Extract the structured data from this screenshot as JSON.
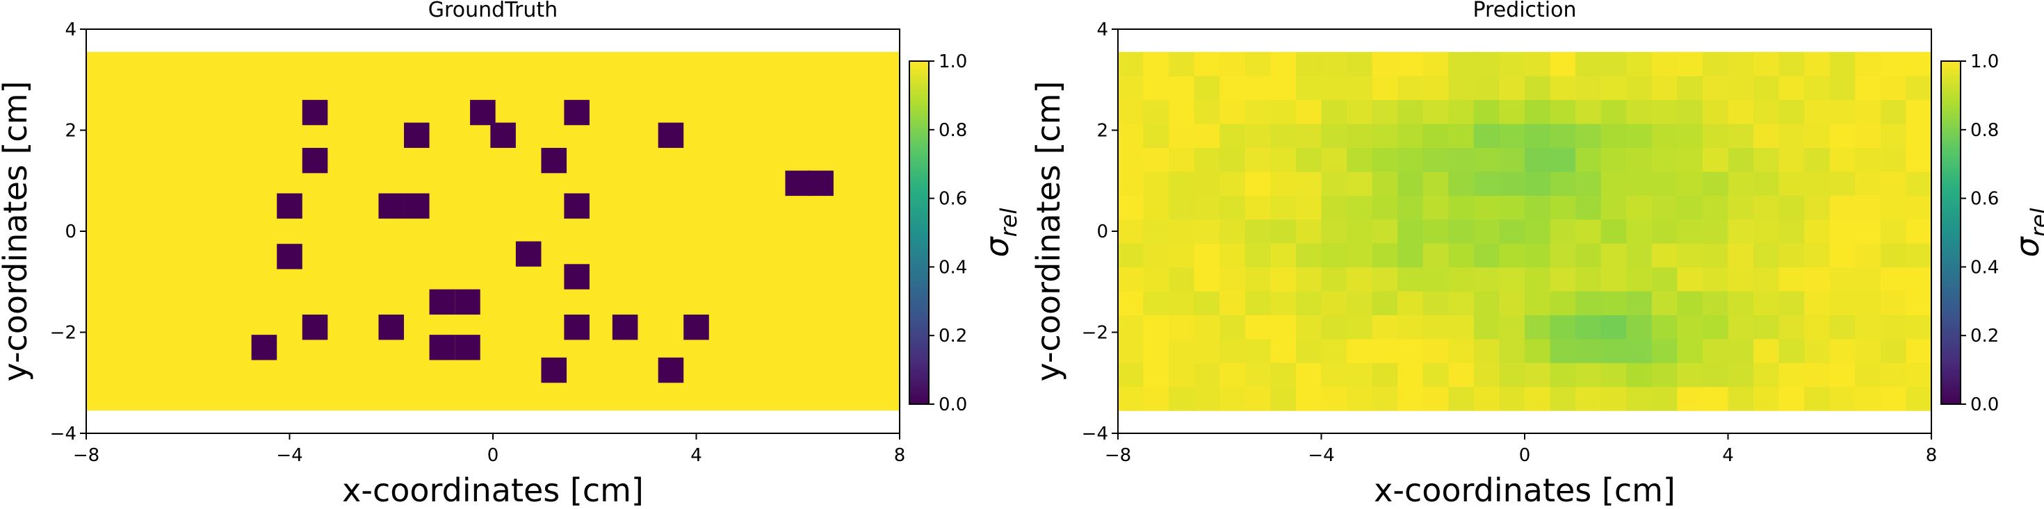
{
  "chart_data": [
    {
      "type": "heatmap",
      "title": "GroundTruth",
      "xlabel": "x-coordinates [cm]",
      "ylabel": "y-coordinates [cm]",
      "xlim": [
        -8,
        8
      ],
      "ylim": [
        -4,
        4
      ],
      "xticks": [
        -8,
        -4,
        0,
        4,
        8
      ],
      "yticks": [
        -4,
        -2,
        0,
        2,
        4
      ],
      "data_extent": {
        "x": [
          -8,
          8
        ],
        "y": [
          -3.55,
          3.55
        ]
      },
      "background_value": 1.0,
      "cell_size": [
        0.5,
        0.5
      ],
      "cells_value_0": [
        [
          -4.5,
          -2.3
        ],
        [
          -4.0,
          -0.5
        ],
        [
          -4.0,
          0.5
        ],
        [
          -3.5,
          2.35
        ],
        [
          -3.5,
          1.4
        ],
        [
          -3.5,
          -1.9
        ],
        [
          -2.0,
          0.5
        ],
        [
          -1.5,
          0.5
        ],
        [
          -1.5,
          1.9
        ],
        [
          -2.0,
          -1.9
        ],
        [
          -1.0,
          -1.4
        ],
        [
          -0.5,
          -1.4
        ],
        [
          -1.0,
          -2.3
        ],
        [
          -0.5,
          -2.3
        ],
        [
          -0.2,
          2.35
        ],
        [
          0.2,
          1.9
        ],
        [
          0.7,
          -0.45
        ],
        [
          1.2,
          1.4
        ],
        [
          1.65,
          2.35
        ],
        [
          1.65,
          0.5
        ],
        [
          1.65,
          -0.9
        ],
        [
          1.65,
          -1.9
        ],
        [
          1.2,
          -2.75
        ],
        [
          2.6,
          -1.9
        ],
        [
          3.5,
          1.9
        ],
        [
          3.5,
          -2.75
        ],
        [
          4.0,
          -1.9
        ],
        [
          6.0,
          0.95
        ],
        [
          6.45,
          0.95
        ]
      ],
      "colorbar": {
        "label": "σ_rel",
        "range": [
          0.0,
          1.0
        ],
        "ticks": [
          "0.0",
          "0.2",
          "0.4",
          "0.6",
          "0.8",
          "1.0"
        ],
        "colormap": "viridis"
      }
    },
    {
      "type": "heatmap",
      "title": "Prediction",
      "xlabel": "x-coordinates [cm]",
      "ylabel": "y-coordinates [cm]",
      "xlim": [
        -8,
        8
      ],
      "ylim": [
        -4,
        4
      ],
      "xticks": [
        -8,
        -4,
        0,
        4,
        8
      ],
      "yticks": [
        -4,
        -2,
        0,
        2,
        4
      ],
      "grid": {
        "cols": 32,
        "rows": 15,
        "x": [
          -8,
          8
        ],
        "y": [
          -3.55,
          3.55
        ]
      },
      "field_description": "values near 1.0 at borders, dipping to about 0.7-0.8 in two bands near y≈1.8 (x -2..2) and y≈-2.2 (x 0..3)",
      "colorbar": {
        "label": "σ_rel",
        "range": [
          0.0,
          1.0
        ],
        "ticks": [
          "0.0",
          "0.2",
          "0.4",
          "0.6",
          "0.8",
          "1.0"
        ],
        "colormap": "viridis"
      }
    }
  ]
}
